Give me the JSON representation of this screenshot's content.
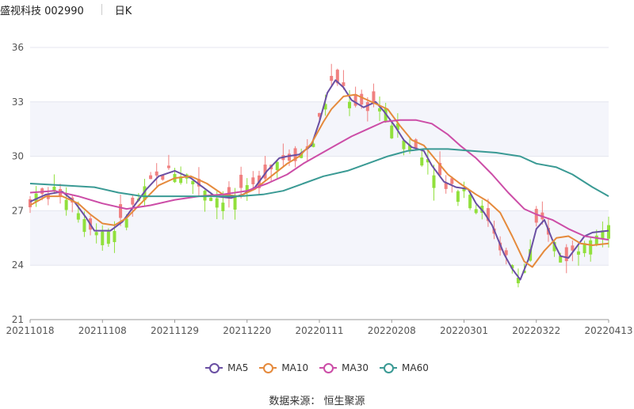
{
  "header": {
    "stock": "盛视科技 002990",
    "period": "日K"
  },
  "source": "数据来源： 恒生聚源",
  "chart_data": {
    "type": "candlestick",
    "ylim": [
      21,
      36
    ],
    "yticks": [
      21,
      24,
      27,
      30,
      33,
      36
    ],
    "xticks": [
      "20211018",
      "20211108",
      "20211129",
      "20211220",
      "20220111",
      "20220208",
      "20220301",
      "20220322",
      "20220413"
    ],
    "colors": {
      "up": "#f08080",
      "down": "#91e03c"
    },
    "series": [
      {
        "name": "MA5",
        "color": "#6a4fa3",
        "points": [
          [
            0,
            27.5
          ],
          [
            8,
            27.9
          ],
          [
            16,
            28.05
          ],
          [
            22,
            27.5
          ],
          [
            28,
            26.6
          ],
          [
            32,
            25.9
          ],
          [
            40,
            25.9
          ],
          [
            46,
            26.4
          ],
          [
            52,
            27.3
          ],
          [
            58,
            28.2
          ],
          [
            64,
            28.9
          ],
          [
            72,
            29.2
          ],
          [
            80,
            28.8
          ],
          [
            86,
            28.3
          ],
          [
            92,
            27.8
          ],
          [
            100,
            27.7
          ],
          [
            106,
            27.9
          ],
          [
            112,
            28.3
          ],
          [
            118,
            29.2
          ],
          [
            124,
            29.9
          ],
          [
            128,
            30.0
          ],
          [
            134,
            30.1
          ],
          [
            140,
            30.6
          ],
          [
            144,
            31.9
          ],
          [
            148,
            33.5
          ],
          [
            152,
            34.2
          ],
          [
            156,
            33.8
          ],
          [
            160,
            33.1
          ],
          [
            166,
            32.7
          ],
          [
            172,
            33.0
          ],
          [
            176,
            32.5
          ],
          [
            182,
            31.6
          ],
          [
            186,
            30.9
          ],
          [
            190,
            30.5
          ],
          [
            196,
            30.3
          ],
          [
            200,
            29.5
          ],
          [
            206,
            28.6
          ],
          [
            212,
            28.3
          ],
          [
            218,
            28.2
          ],
          [
            222,
            27.4
          ],
          [
            226,
            26.9
          ],
          [
            230,
            26.2
          ],
          [
            236,
            24.6
          ],
          [
            240,
            23.8
          ],
          [
            244,
            23.2
          ],
          [
            248,
            24.3
          ],
          [
            252,
            26.0
          ],
          [
            256,
            26.5
          ],
          [
            260,
            25.4
          ],
          [
            264,
            24.5
          ],
          [
            268,
            24.4
          ],
          [
            272,
            25.0
          ],
          [
            276,
            25.6
          ],
          [
            280,
            25.8
          ],
          [
            288,
            25.9
          ]
        ]
      },
      {
        "name": "MA10",
        "color": "#e58a3c",
        "points": [
          [
            0,
            27.3
          ],
          [
            8,
            27.8
          ],
          [
            16,
            27.8
          ],
          [
            24,
            27.4
          ],
          [
            30,
            26.8
          ],
          [
            36,
            26.3
          ],
          [
            42,
            26.2
          ],
          [
            48,
            26.6
          ],
          [
            56,
            27.5
          ],
          [
            64,
            28.4
          ],
          [
            72,
            28.8
          ],
          [
            80,
            28.9
          ],
          [
            88,
            28.5
          ],
          [
            96,
            27.9
          ],
          [
            104,
            27.8
          ],
          [
            112,
            28.2
          ],
          [
            120,
            28.9
          ],
          [
            128,
            29.6
          ],
          [
            134,
            30.0
          ],
          [
            140,
            30.7
          ],
          [
            146,
            31.9
          ],
          [
            150,
            32.6
          ],
          [
            156,
            33.3
          ],
          [
            162,
            33.4
          ],
          [
            168,
            33.1
          ],
          [
            172,
            32.9
          ],
          [
            178,
            32.6
          ],
          [
            184,
            31.7
          ],
          [
            190,
            30.9
          ],
          [
            196,
            30.6
          ],
          [
            202,
            29.8
          ],
          [
            208,
            29.0
          ],
          [
            214,
            28.5
          ],
          [
            222,
            27.9
          ],
          [
            228,
            27.5
          ],
          [
            234,
            26.9
          ],
          [
            240,
            25.6
          ],
          [
            246,
            24.2
          ],
          [
            250,
            23.9
          ],
          [
            256,
            24.8
          ],
          [
            262,
            25.5
          ],
          [
            268,
            25.6
          ],
          [
            274,
            25.2
          ],
          [
            280,
            25.1
          ],
          [
            288,
            25.2
          ]
        ]
      },
      {
        "name": "MA30",
        "color": "#cc4da7",
        "points": [
          [
            0,
            28.0
          ],
          [
            12,
            28.1
          ],
          [
            24,
            27.8
          ],
          [
            36,
            27.4
          ],
          [
            48,
            27.1
          ],
          [
            60,
            27.3
          ],
          [
            72,
            27.6
          ],
          [
            84,
            27.8
          ],
          [
            96,
            27.9
          ],
          [
            108,
            28.1
          ],
          [
            118,
            28.5
          ],
          [
            128,
            29.0
          ],
          [
            136,
            29.6
          ],
          [
            144,
            30.1
          ],
          [
            152,
            30.6
          ],
          [
            160,
            31.1
          ],
          [
            168,
            31.5
          ],
          [
            176,
            31.9
          ],
          [
            184,
            32.0
          ],
          [
            192,
            32.0
          ],
          [
            200,
            31.8
          ],
          [
            208,
            31.2
          ],
          [
            214,
            30.6
          ],
          [
            222,
            29.9
          ],
          [
            230,
            29.0
          ],
          [
            238,
            28.0
          ],
          [
            246,
            27.1
          ],
          [
            252,
            26.8
          ],
          [
            260,
            26.5
          ],
          [
            268,
            26.0
          ],
          [
            276,
            25.6
          ],
          [
            288,
            25.4
          ]
        ]
      },
      {
        "name": "MA60",
        "color": "#3a9a94",
        "points": [
          [
            0,
            28.5
          ],
          [
            16,
            28.4
          ],
          [
            32,
            28.3
          ],
          [
            44,
            28.0
          ],
          [
            56,
            27.8
          ],
          [
            72,
            27.8
          ],
          [
            88,
            27.8
          ],
          [
            104,
            27.8
          ],
          [
            116,
            27.9
          ],
          [
            126,
            28.1
          ],
          [
            136,
            28.5
          ],
          [
            146,
            28.9
          ],
          [
            158,
            29.2
          ],
          [
            168,
            29.6
          ],
          [
            178,
            30.0
          ],
          [
            188,
            30.3
          ],
          [
            196,
            30.4
          ],
          [
            208,
            30.4
          ],
          [
            220,
            30.3
          ],
          [
            232,
            30.2
          ],
          [
            244,
            30.0
          ],
          [
            252,
            29.6
          ],
          [
            262,
            29.4
          ],
          [
            270,
            29.0
          ],
          [
            280,
            28.3
          ],
          [
            288,
            27.8
          ]
        ]
      }
    ]
  }
}
